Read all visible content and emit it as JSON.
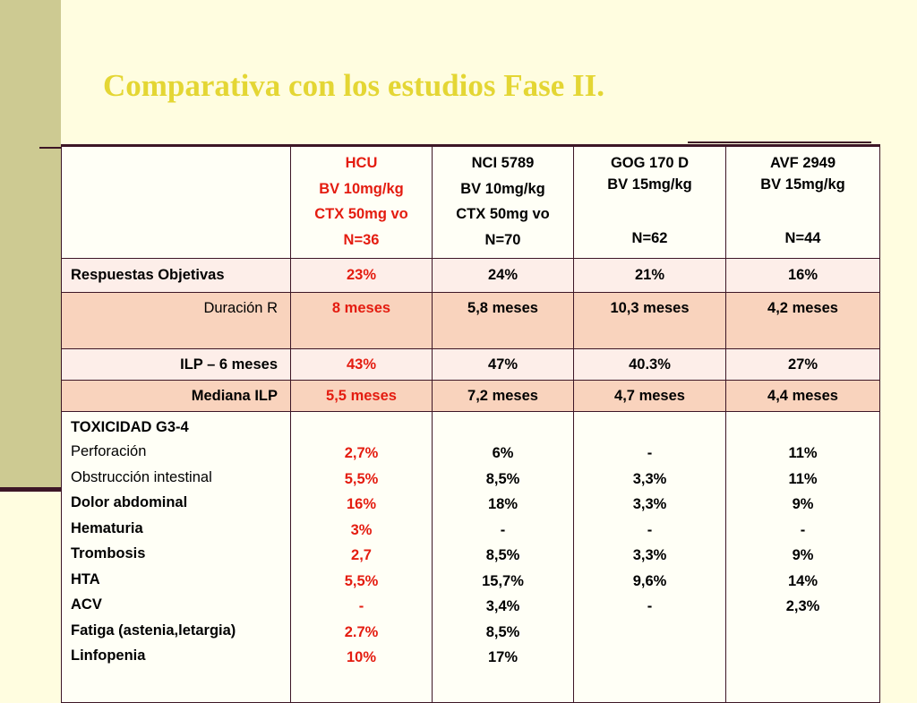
{
  "title": "Comparativa con los estudios Fase II.",
  "columns": [
    {
      "lines": [
        "HCU",
        "BV 10mg/kg",
        "CTX 50mg vo",
        "N=36"
      ]
    },
    {
      "lines": [
        "NCI 5789",
        "BV 10mg/kg",
        "CTX 50mg vo",
        "N=70"
      ]
    },
    {
      "lines": [
        "GOG 170 D",
        "BV 15mg/kg",
        "",
        "N=62"
      ]
    },
    {
      "lines": [
        "AVF 2949",
        "BV 15mg/kg",
        "",
        "N=44"
      ]
    }
  ],
  "rows": [
    {
      "label": "Respuestas Objetivas",
      "values": [
        "23%",
        "24%",
        "21%",
        "16%"
      ]
    },
    {
      "label": "Duración R",
      "values": [
        "8 meses",
        "5,8 meses",
        "10,3 meses",
        "4,2 meses"
      ]
    },
    {
      "label": "ILP – 6 meses",
      "values": [
        "43%",
        "47%",
        "40.3%",
        "27%"
      ]
    },
    {
      "label": "Mediana ILP",
      "values": [
        "5,5 meses",
        "7,2 meses",
        "4,7 meses",
        "4,4 meses"
      ]
    }
  ],
  "toxicity": {
    "heading": "TOXICIDAD G3-4",
    "items": [
      "Perforación",
      "Obstrucción intestinal",
      "Dolor abdominal",
      "Hematuria",
      "Trombosis",
      "HTA",
      "ACV",
      "Fatiga (astenia,letargia)",
      "Linfopenia"
    ],
    "values": [
      [
        "2,7%",
        "5,5%",
        "16%",
        "3%",
        "2,7",
        "5,5%",
        "-",
        "2.7%",
        "10%"
      ],
      [
        "6%",
        "8,5%",
        "18%",
        "-",
        "8,5%",
        "15,7%",
        "3,4%",
        "8,5%",
        "17%"
      ],
      [
        "-",
        "3,3%",
        "3,3%",
        "-",
        "3,3%",
        "9,6%",
        "-"
      ],
      [
        "11%",
        "11%",
        "9%",
        "-",
        "9%",
        "14%",
        "2,3%"
      ]
    ]
  },
  "colors": {
    "title": "#e4d634",
    "highlight": "#e41c10",
    "band": "#cdca92",
    "row_light": "#fdeee9",
    "row_dark": "#f9d3bd"
  }
}
